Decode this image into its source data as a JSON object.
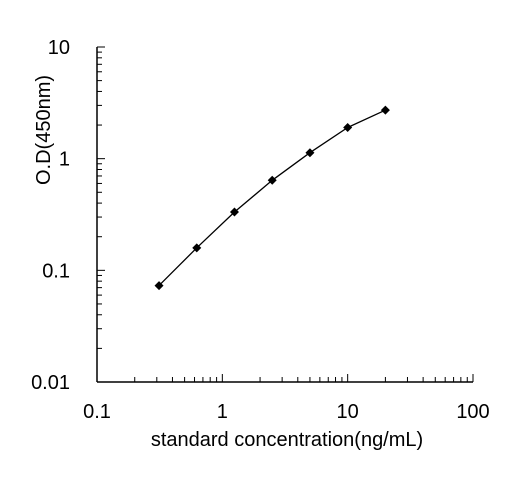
{
  "chart_data": {
    "type": "line",
    "title": "",
    "xlabel": "standard concentration(ng/mL)",
    "ylabel": "O.D(450nm)",
    "x_scale": "log",
    "y_scale": "log",
    "xlim": [
      0.1,
      100
    ],
    "ylim": [
      0.01,
      10
    ],
    "x_ticks": [
      "0.1",
      "1",
      "10",
      "100"
    ],
    "y_ticks": [
      "0.01",
      "0.1",
      "1",
      "10"
    ],
    "grid": false,
    "legend": "none",
    "series": [
      {
        "x": [
          0.3125,
          0.625,
          1.25,
          2.5,
          5,
          10,
          20
        ],
        "y": [
          0.073,
          0.159,
          0.333,
          0.64,
          1.13,
          1.9,
          2.72
        ],
        "color": "#000000",
        "marker": "diamond"
      }
    ]
  }
}
